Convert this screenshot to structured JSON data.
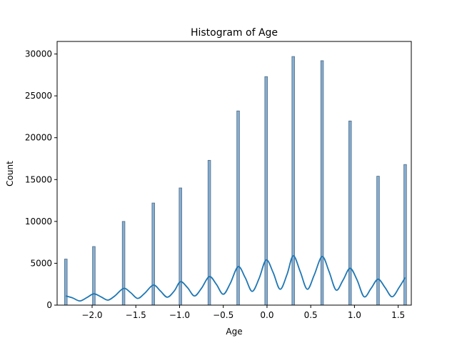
{
  "chart_data": {
    "type": "bar",
    "title": "Histogram of Age",
    "xlabel": "Age",
    "ylabel": "Count",
    "xlim": [
      -2.4,
      1.65
    ],
    "ylim": [
      0,
      31500
    ],
    "xticks": [
      -2.0,
      -1.5,
      -1.0,
      -0.5,
      0.0,
      0.5,
      1.0,
      1.5
    ],
    "xtick_labels": [
      "−2.0",
      "−1.5",
      "−1.0",
      "−0.5",
      "0.0",
      "0.5",
      "1.0",
      "1.5"
    ],
    "yticks": [
      0,
      5000,
      10000,
      15000,
      20000,
      25000,
      30000
    ],
    "ytick_labels": [
      "0",
      "5000",
      "10000",
      "15000",
      "20000",
      "25000",
      "30000"
    ],
    "bar_width": 0.03,
    "bars": [
      {
        "x": -2.3,
        "count": 5500
      },
      {
        "x": -1.98,
        "count": 7000
      },
      {
        "x": -1.64,
        "count": 10000
      },
      {
        "x": -1.3,
        "count": 12200
      },
      {
        "x": -0.99,
        "count": 14000
      },
      {
        "x": -0.66,
        "count": 17300
      },
      {
        "x": -0.33,
        "count": 23200
      },
      {
        "x": -0.01,
        "count": 27300
      },
      {
        "x": 0.3,
        "count": 29700
      },
      {
        "x": 0.63,
        "count": 29200
      },
      {
        "x": 0.95,
        "count": 22000
      },
      {
        "x": 1.27,
        "count": 15400
      },
      {
        "x": 1.58,
        "count": 16800
      }
    ],
    "kde": {
      "color": "#1f77b4",
      "x": [
        -2.3,
        -2.22,
        -2.14,
        -2.06,
        -1.98,
        -1.9,
        -1.82,
        -1.74,
        -1.64,
        -1.56,
        -1.48,
        -1.4,
        -1.3,
        -1.22,
        -1.14,
        -1.06,
        -0.99,
        -0.91,
        -0.83,
        -0.75,
        -0.66,
        -0.58,
        -0.5,
        -0.42,
        -0.33,
        -0.25,
        -0.17,
        -0.09,
        -0.01,
        0.07,
        0.15,
        0.23,
        0.3,
        0.38,
        0.46,
        0.54,
        0.63,
        0.71,
        0.79,
        0.87,
        0.95,
        1.03,
        1.11,
        1.19,
        1.27,
        1.35,
        1.43,
        1.51,
        1.58
      ],
      "y": [
        1100,
        850,
        500,
        900,
        1350,
        1000,
        600,
        1100,
        2000,
        1500,
        800,
        1400,
        2400,
        1700,
        950,
        1700,
        2800,
        2100,
        1100,
        2000,
        3400,
        2500,
        1300,
        2600,
        4600,
        3300,
        1650,
        3200,
        5400,
        3900,
        1900,
        3700,
        5900,
        4000,
        1900,
        3600,
        5800,
        4000,
        1800,
        3000,
        4400,
        3000,
        1000,
        2000,
        3100,
        2100,
        1000,
        2100,
        3300
      ]
    },
    "bar_fill": "#86aed3",
    "bar_edge": "#4f6a82",
    "grid": false
  }
}
